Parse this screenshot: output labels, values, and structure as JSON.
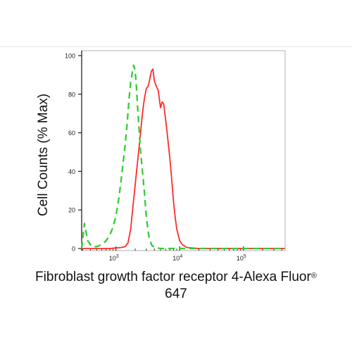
{
  "chart_data": {
    "type": "line",
    "xlabel_main": "Fibroblast growth factor receptor 4-Alexa Fluor",
    "xlabel_sup": "®",
    "xlabel_line2": "647",
    "ylabel": "Cell Counts (% Max)",
    "y_ticks": [
      0,
      20,
      40,
      60,
      80,
      100
    ],
    "ylim": [
      0,
      100
    ],
    "x_scale": "log",
    "x_ticks": [
      {
        "value": 1000,
        "base": "10",
        "exp": "3"
      },
      {
        "value": 10000,
        "base": "10",
        "exp": "4"
      },
      {
        "value": 100000,
        "base": "10",
        "exp": "5"
      }
    ],
    "xlim": [
      290,
      450000
    ],
    "grid": false,
    "series": [
      {
        "color": "#ff2a2a",
        "style": "solid",
        "x": [
          290,
          600,
          800,
          1000,
          1200,
          1400,
          1550,
          1700,
          1850,
          2000,
          2200,
          2400,
          2600,
          2800,
          3000,
          3200,
          3400,
          3600,
          3800,
          4000,
          4300,
          4600,
          5000,
          5300,
          5600,
          6000,
          6500,
          7000,
          7500,
          8000,
          8500,
          9000,
          10000,
          11000,
          13000,
          20000,
          50000,
          150000,
          450000
        ],
        "y": [
          0,
          0,
          0,
          0.3,
          0.5,
          1,
          3,
          10,
          22,
          33,
          46,
          58,
          70,
          78,
          83,
          84,
          88,
          92,
          93,
          87,
          84,
          82,
          73,
          76,
          75,
          67,
          57,
          47,
          36,
          24,
          16,
          10,
          4,
          2,
          0.5,
          0,
          0,
          0,
          0
        ]
      },
      {
        "color": "#33cc33",
        "style": "dashed",
        "x": [
          290,
          320,
          360,
          420,
          500,
          600,
          700,
          800,
          900,
          1000,
          1100,
          1200,
          1300,
          1400,
          1500,
          1600,
          1700,
          1800,
          1900,
          2000,
          2100,
          2200,
          2300,
          2400,
          2600,
          2800,
          3000,
          3300,
          3600,
          4000,
          5000,
          10000,
          100000,
          450000
        ],
        "y": [
          0,
          13,
          4,
          1,
          1,
          2,
          4,
          7,
          11,
          17,
          25,
          35,
          45,
          54,
          65,
          77,
          86,
          91,
          95,
          92,
          83,
          72,
          62,
          53,
          40,
          29,
          16,
          6,
          2,
          0.5,
          0,
          0,
          0,
          0
        ]
      }
    ]
  }
}
